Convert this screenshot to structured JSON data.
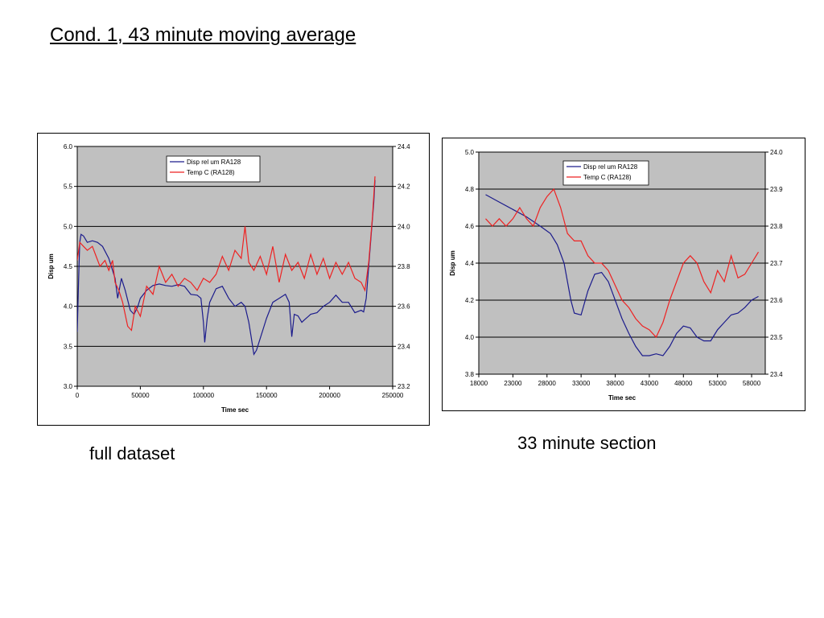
{
  "slide": {
    "title": "Cond. 1, 43 minute moving average",
    "caption_left": "full dataset",
    "caption_right": "33 minute section"
  },
  "colors": {
    "plot_bg": "#c0c0c0",
    "disp": "#1c1c8c",
    "temp": "#ee2222",
    "grid": "#000000"
  },
  "chart_data": [
    {
      "type": "line",
      "xlabel": "Time sec",
      "ylabel": "Disp um",
      "xlim": [
        0,
        250000
      ],
      "ylim": [
        3.0,
        6.0
      ],
      "y2lim": [
        23.2,
        24.4
      ],
      "xticks": [
        "0",
        "50000",
        "100000",
        "150000",
        "200000",
        "250000"
      ],
      "yticks": [
        "3.0",
        "3.5",
        "4.0",
        "4.5",
        "5.0",
        "5.5",
        "6.0"
      ],
      "y2ticks": [
        "23.2",
        "23.4",
        "23.6",
        "23.8",
        "24.0",
        "24.2",
        "24.4"
      ],
      "grid": true,
      "legend_position": "top-center",
      "series": [
        {
          "name": "Disp rel um RA128",
          "axis": "left",
          "color": "#1c1c8c",
          "x": [
            0,
            1000,
            2000,
            3000,
            5000,
            8000,
            12000,
            16000,
            20000,
            25000,
            30000,
            32000,
            35000,
            38000,
            42000,
            45000,
            48000,
            50000,
            55000,
            60000,
            65000,
            70000,
            75000,
            80000,
            85000,
            90000,
            95000,
            98000,
            100000,
            101000,
            103000,
            105000,
            108000,
            110000,
            115000,
            120000,
            125000,
            130000,
            133000,
            136000,
            138000,
            140000,
            142000,
            145000,
            148000,
            150000,
            155000,
            160000,
            165000,
            168000,
            170000,
            172000,
            175000,
            178000,
            180000,
            185000,
            190000,
            195000,
            200000,
            205000,
            210000,
            215000,
            220000,
            225000,
            227000,
            229000,
            231000,
            233000,
            235000,
            236000
          ],
          "y": [
            3.68,
            4.3,
            4.8,
            4.9,
            4.88,
            4.8,
            4.82,
            4.8,
            4.75,
            4.6,
            4.35,
            4.1,
            4.35,
            4.2,
            3.95,
            3.9,
            4.0,
            4.1,
            4.2,
            4.26,
            4.28,
            4.26,
            4.25,
            4.27,
            4.25,
            4.15,
            4.14,
            4.1,
            3.8,
            3.55,
            3.85,
            4.05,
            4.15,
            4.22,
            4.25,
            4.1,
            4.0,
            4.05,
            4.0,
            3.8,
            3.6,
            3.4,
            3.45,
            3.6,
            3.75,
            3.85,
            4.05,
            4.1,
            4.15,
            4.05,
            3.62,
            3.9,
            3.88,
            3.8,
            3.83,
            3.9,
            3.92,
            4.0,
            4.05,
            4.14,
            4.05,
            4.05,
            3.92,
            3.95,
            3.93,
            4.1,
            4.5,
            4.9,
            5.3,
            5.58
          ]
        },
        {
          "name": "Temp C (RA128)",
          "axis": "right",
          "color": "#ee2222",
          "x": [
            0,
            2000,
            5000,
            8000,
            12000,
            15000,
            18000,
            22000,
            25000,
            28000,
            30000,
            33000,
            36000,
            40000,
            43000,
            46000,
            50000,
            55000,
            60000,
            65000,
            70000,
            75000,
            80000,
            85000,
            90000,
            95000,
            100000,
            105000,
            110000,
            115000,
            120000,
            125000,
            130000,
            133000,
            136000,
            140000,
            145000,
            150000,
            155000,
            160000,
            165000,
            170000,
            175000,
            180000,
            185000,
            190000,
            195000,
            200000,
            205000,
            210000,
            215000,
            220000,
            225000,
            228000,
            231000,
            234000,
            236000
          ],
          "y": [
            23.83,
            23.92,
            23.9,
            23.88,
            23.9,
            23.85,
            23.8,
            23.83,
            23.78,
            23.83,
            23.72,
            23.68,
            23.62,
            23.5,
            23.48,
            23.6,
            23.55,
            23.7,
            23.66,
            23.8,
            23.72,
            23.76,
            23.7,
            23.74,
            23.72,
            23.68,
            23.74,
            23.72,
            23.76,
            23.85,
            23.78,
            23.88,
            23.84,
            24.0,
            23.82,
            23.78,
            23.85,
            23.76,
            23.9,
            23.72,
            23.86,
            23.78,
            23.82,
            23.74,
            23.86,
            23.76,
            23.84,
            23.74,
            23.82,
            23.76,
            23.82,
            23.74,
            23.72,
            23.68,
            23.82,
            24.05,
            24.25
          ]
        }
      ]
    },
    {
      "type": "line",
      "xlabel": "Time sec",
      "ylabel": "Disp um",
      "xlim": [
        18000,
        60000
      ],
      "ylim": [
        3.8,
        5.0
      ],
      "y2lim": [
        23.4,
        24.0
      ],
      "xticks": [
        "18000",
        "23000",
        "28000",
        "33000",
        "38000",
        "43000",
        "48000",
        "53000",
        "58000"
      ],
      "yticks": [
        "3.8",
        "4.0",
        "4.2",
        "4.4",
        "4.6",
        "4.8",
        "5.0"
      ],
      "y2ticks": [
        "23.4",
        "23.5",
        "23.6",
        "23.7",
        "23.8",
        "23.9",
        "24.0"
      ],
      "grid": true,
      "legend_position": "top-center",
      "series": [
        {
          "name": "Disp rel um RA128",
          "axis": "left",
          "color": "#1c1c8c",
          "x": [
            19000,
            21000,
            23000,
            25000,
            27000,
            28500,
            29500,
            30500,
            31000,
            31500,
            32000,
            33000,
            34000,
            35000,
            36000,
            37000,
            38000,
            39000,
            40000,
            41000,
            42000,
            43000,
            44000,
            45000,
            46000,
            47000,
            48000,
            49000,
            50000,
            51000,
            52000,
            53000,
            54000,
            55000,
            56000,
            57000,
            58000,
            59000
          ],
          "y": [
            4.77,
            4.73,
            4.69,
            4.65,
            4.6,
            4.56,
            4.5,
            4.4,
            4.3,
            4.2,
            4.13,
            4.12,
            4.25,
            4.34,
            4.35,
            4.3,
            4.2,
            4.1,
            4.02,
            3.95,
            3.9,
            3.9,
            3.91,
            3.9,
            3.95,
            4.02,
            4.06,
            4.05,
            4.0,
            3.98,
            3.98,
            4.04,
            4.08,
            4.12,
            4.13,
            4.16,
            4.2,
            4.22
          ]
        },
        {
          "name": "Temp C (RA128)",
          "axis": "right",
          "color": "#ee2222",
          "x": [
            19000,
            20000,
            21000,
            22000,
            23000,
            24000,
            25000,
            26000,
            27000,
            28000,
            29000,
            30000,
            31000,
            32000,
            33000,
            34000,
            35000,
            36000,
            37000,
            38000,
            39000,
            40000,
            41000,
            42000,
            43000,
            44000,
            45000,
            46000,
            47000,
            48000,
            49000,
            50000,
            51000,
            52000,
            53000,
            54000,
            55000,
            56000,
            57000,
            58000,
            59000
          ],
          "y": [
            23.82,
            23.8,
            23.82,
            23.8,
            23.82,
            23.85,
            23.82,
            23.8,
            23.85,
            23.88,
            23.9,
            23.85,
            23.78,
            23.76,
            23.76,
            23.72,
            23.7,
            23.7,
            23.68,
            23.64,
            23.6,
            23.58,
            23.55,
            23.53,
            23.52,
            23.5,
            23.54,
            23.6,
            23.65,
            23.7,
            23.72,
            23.7,
            23.65,
            23.62,
            23.68,
            23.65,
            23.72,
            23.66,
            23.67,
            23.7,
            23.73
          ]
        }
      ]
    }
  ]
}
